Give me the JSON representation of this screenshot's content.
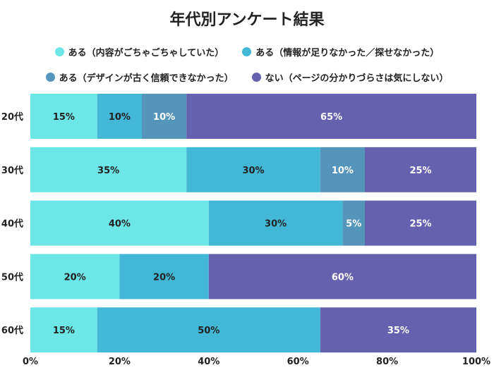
{
  "chart_data": {
    "type": "bar",
    "orientation": "horizontal",
    "stacked": true,
    "title": "年代別アンケート結果",
    "categories": [
      "20代",
      "30代",
      "40代",
      "50代",
      "60代"
    ],
    "series": [
      {
        "name": "ある（内容がごちゃごちゃしていた）",
        "color": "#6de6e8",
        "label_color": "#222222",
        "values": [
          15,
          35,
          40,
          20,
          15
        ]
      },
      {
        "name": "ある（情報が足りなかった／探せなかった）",
        "color": "#42b8d6",
        "label_color": "#222222",
        "values": [
          10,
          30,
          30,
          20,
          50
        ]
      },
      {
        "name": "ある（デザインが古く信頼できなかった）",
        "color": "#5595bb",
        "label_color": "#ffffff",
        "values": [
          10,
          10,
          5,
          0,
          0
        ]
      },
      {
        "name": "ない（ページの分かりづらさは気にしない）",
        "color": "#6461ae",
        "label_color": "#ffffff",
        "values": [
          65,
          25,
          25,
          60,
          35
        ]
      }
    ],
    "xlim": [
      0,
      100
    ],
    "xticks": [
      "0%",
      "20%",
      "40%",
      "60%",
      "80%",
      "100%"
    ],
    "grid": false,
    "legend_position": "top"
  }
}
